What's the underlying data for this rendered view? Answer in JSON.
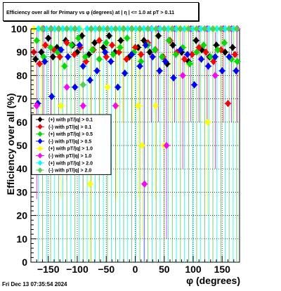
{
  "title": "Efficiency over all for Primary vs φ (degrees) at | η | <= 1.0 at pT > 0.11",
  "timestamp": "Fri Dec 13 07:35:54 2024",
  "chart_data": {
    "type": "scatter",
    "title": "Efficiency over all for Primary vs φ (degrees) at | η | <= 1.0 at pT > 0.11",
    "xlabel": "φ (degrees)",
    "ylabel": "Efficiency over all (%)",
    "xlim": [
      -180,
      180
    ],
    "ylim": [
      0,
      100
    ],
    "xticks": [
      -150,
      -100,
      -50,
      0,
      50,
      100,
      150
    ],
    "xtick_labels": [
      "−150",
      "−100",
      "−50",
      "0",
      "50",
      "100",
      "150"
    ],
    "yticks": [
      0,
      10,
      20,
      30,
      40,
      50,
      60,
      70,
      80,
      90,
      100
    ],
    "grid": "dotted",
    "legend_position": "left-middle",
    "series": [
      {
        "name": "(+) with pT/|q| > 0.1",
        "color": "#000000",
        "x": [
          -172,
          -162,
          -150,
          -142,
          -135,
          -120,
          -108,
          -100,
          -92,
          -80,
          -70,
          -55,
          -45,
          -35,
          -25,
          -10,
          5,
          15,
          25,
          40,
          55,
          65,
          80,
          92,
          105,
          115,
          128,
          140,
          155,
          168
        ],
        "y": [
          87,
          90,
          96,
          88,
          92,
          95,
          93,
          90,
          97,
          89,
          94,
          92,
          97,
          90,
          95,
          88,
          92,
          95,
          90,
          97,
          85,
          93,
          90,
          86,
          95,
          91,
          88,
          93,
          90,
          92
        ]
      },
      {
        "name": "(-) with pT/|q| > 0.1",
        "color": "#ff0000",
        "x": [
          -175,
          -165,
          -155,
          -140,
          -130,
          -118,
          -105,
          -95,
          -85,
          -72,
          -62,
          -50,
          -40,
          -28,
          -15,
          0,
          10,
          22,
          35,
          48,
          60,
          72,
          85,
          98,
          110,
          122,
          135,
          148,
          160,
          172
        ],
        "y": [
          90,
          85,
          93,
          91,
          88,
          94,
          89,
          92,
          86,
          91,
          95,
          88,
          93,
          90,
          87,
          92,
          89,
          94,
          91,
          88,
          95,
          90,
          87,
          89,
          92,
          90,
          86,
          91,
          68,
          89
        ]
      },
      {
        "name": "(+) with pT/|q| > 0.5",
        "color": "#00dd00",
        "x": [
          -170,
          -158,
          -146,
          -134,
          -122,
          -110,
          -98,
          -86,
          -74,
          -62,
          -50,
          -38,
          -26,
          -14,
          -2,
          10,
          22,
          34,
          46,
          58,
          70,
          82,
          94,
          106,
          118,
          130,
          142,
          154,
          166,
          176
        ],
        "y": [
          95,
          88,
          92,
          90,
          84,
          93,
          96,
          88,
          91,
          87,
          94,
          89,
          92,
          96,
          90,
          86,
          93,
          91,
          88,
          95,
          89,
          92,
          85,
          90,
          93,
          88,
          91,
          94,
          87,
          86
        ]
      },
      {
        "name": "(-) with pT/|q| > 0.5",
        "color": "#0000ff",
        "x": [
          -168,
          -156,
          -144,
          -128,
          -116,
          -104,
          -90,
          -78,
          -66,
          -52,
          -42,
          -30,
          -18,
          -6,
          8,
          18,
          30,
          42,
          52,
          66,
          78,
          90,
          102,
          114,
          126,
          138,
          150,
          162,
          174,
          -96
        ],
        "y": [
          68,
          86,
          71,
          91,
          88,
          75,
          84,
          78,
          82,
          90,
          86,
          75,
          81,
          89,
          84,
          93,
          88,
          82,
          86,
          79,
          91,
          89,
          76,
          87,
          84,
          88,
          82,
          88,
          82,
          93
        ]
      },
      {
        "name": "(+) with pT/|q| > 1.0",
        "color": "#ffff00",
        "x": [
          -175,
          -162,
          -140,
          -128,
          -110,
          -95,
          -78,
          -60,
          -48,
          -32,
          -22,
          -5,
          5,
          12,
          22,
          35,
          50,
          60,
          75,
          88,
          100,
          112,
          125,
          138,
          150,
          170
        ],
        "y": [
          100,
          100,
          100,
          67,
          100,
          100,
          33.5,
          100,
          75,
          67,
          100,
          100,
          67,
          50,
          100,
          67,
          50,
          100,
          100,
          100,
          100,
          100,
          60,
          100,
          100,
          100
        ]
      },
      {
        "name": "(-) with pT/|q| > 1.0",
        "color": "#ff00ff",
        "x": [
          -170,
          -158,
          -145,
          -132,
          -118,
          -104,
          -90,
          -76,
          -62,
          -48,
          -34,
          -20,
          -6,
          8,
          16,
          28,
          40,
          54,
          68,
          82,
          96,
          110,
          124,
          138,
          152,
          166,
          176
        ],
        "y": [
          67,
          100,
          100,
          100,
          75,
          100,
          67,
          100,
          100,
          100,
          67,
          100,
          100,
          100,
          33.5,
          100,
          100,
          50,
          100,
          80,
          100,
          100,
          100,
          80,
          100,
          100,
          100
        ]
      },
      {
        "name": "(+) with pT/|q| > 2.0",
        "color": "#00ffff",
        "x": [
          -167,
          -153,
          -139,
          -125,
          -111,
          -97,
          -83,
          -69,
          -55,
          -41,
          -27,
          -13,
          1,
          15,
          29,
          43,
          57,
          71,
          85,
          99,
          113,
          127,
          141,
          155,
          169
        ],
        "y": [
          100,
          100,
          100,
          100,
          100,
          100,
          100,
          100,
          100,
          100,
          100,
          100,
          100,
          100,
          100,
          100,
          100,
          100,
          100,
          100,
          100,
          100,
          100,
          100,
          100
        ]
      },
      {
        "name": "(-) with pT/|q| > 2.0",
        "color": "#55cc55",
        "x": [
          -160,
          -146,
          -132,
          -118,
          -104,
          -90,
          -76,
          -62,
          -48,
          -34,
          -20,
          -6,
          8,
          22,
          36,
          50,
          64,
          78,
          92,
          106,
          120,
          134,
          148,
          162,
          175
        ],
        "y": [
          100,
          100,
          100,
          100,
          100,
          76,
          100,
          100,
          100,
          100,
          100,
          100,
          100,
          100,
          100,
          100,
          100,
          100,
          100,
          100,
          100,
          100,
          100,
          100,
          100
        ]
      }
    ]
  }
}
